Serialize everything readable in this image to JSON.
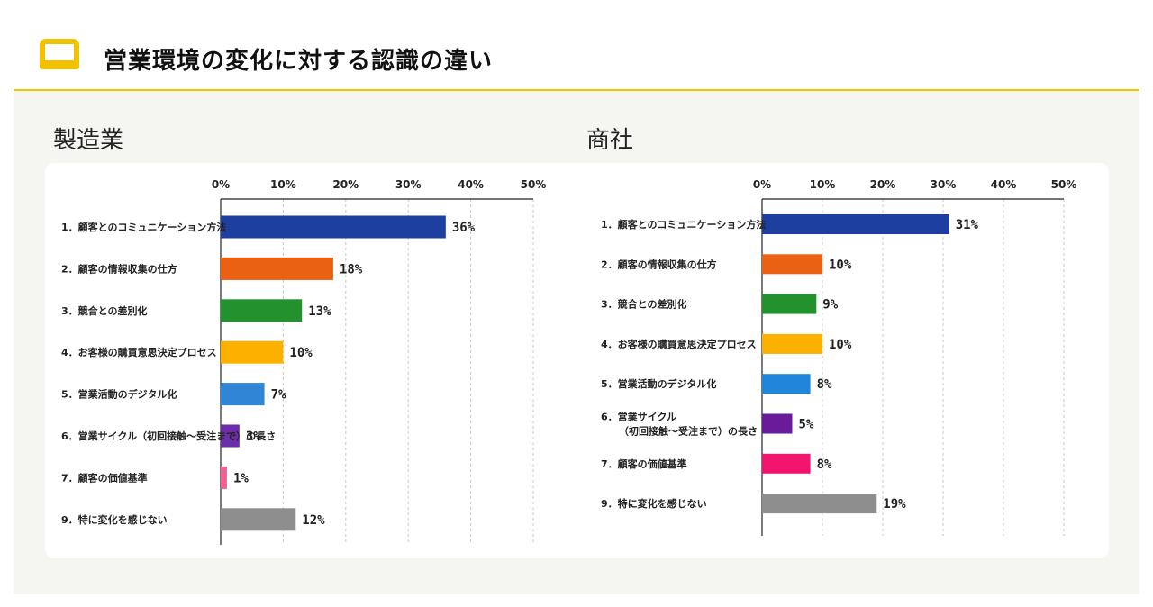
{
  "header": {
    "title": "営業環境の変化に対する認識の違い",
    "accent_color": "#f2c200",
    "icon": "note-icon"
  },
  "chart_data": [
    {
      "type": "bar",
      "orientation": "horizontal",
      "title": "製造業",
      "xlim": [
        0,
        50
      ],
      "xticks": [
        "0%",
        "10%",
        "20%",
        "30%",
        "40%",
        "50%"
      ],
      "grid": true,
      "categories": [
        [
          "1．顧客とのコミュニケーション方法"
        ],
        [
          "2．顧客の情報収集の仕方"
        ],
        [
          "3．競合との差別化"
        ],
        [
          "4．お客様の購買意思決定プロセス"
        ],
        [
          "5．営業活動のデジタル化"
        ],
        [
          "6．営業サイクル（初回接触～受注まで）の長さ"
        ],
        [
          "7．顧客の価値基準"
        ],
        [
          "9．特に変化を感じない"
        ]
      ],
      "values": [
        36,
        18,
        13,
        10,
        7,
        3,
        1,
        12
      ],
      "value_labels": [
        "36%",
        "18%",
        "13%",
        "10%",
        "7%",
        "3%",
        "1%",
        "12%"
      ],
      "colors": [
        "#1c3fa0",
        "#ea6113",
        "#23912e",
        "#fcb000",
        "#2f86d6",
        "#6b2da8",
        "#f06292",
        "#8e8e8e"
      ]
    },
    {
      "type": "bar",
      "orientation": "horizontal",
      "title": "商社",
      "xlim": [
        0,
        50
      ],
      "xticks": [
        "0%",
        "10%",
        "20%",
        "30%",
        "40%",
        "50%"
      ],
      "grid": true,
      "categories": [
        [
          "1．顧客とのコミュニケーション方法"
        ],
        [
          "2．顧客の情報収集の仕方"
        ],
        [
          "3．競合との差別化"
        ],
        [
          "4．お客様の購買意思決定プロセス"
        ],
        [
          "5．営業活動のデジタル化"
        ],
        [
          "6．営業サイクル",
          "（初回接触～受注まで）の長さ"
        ],
        [
          "7．顧客の価値基準"
        ],
        [
          "9．特に変化を感じない"
        ]
      ],
      "values": [
        31,
        10,
        9,
        10,
        8,
        5,
        8,
        19
      ],
      "value_labels": [
        "31%",
        "10%",
        "9%",
        "10%",
        "8%",
        "5%",
        "8%",
        "19%"
      ],
      "colors": [
        "#1c3fa0",
        "#ea6113",
        "#23912e",
        "#fcb000",
        "#1f86dc",
        "#6a1b9a",
        "#f0146e",
        "#8e8e8e"
      ]
    }
  ]
}
